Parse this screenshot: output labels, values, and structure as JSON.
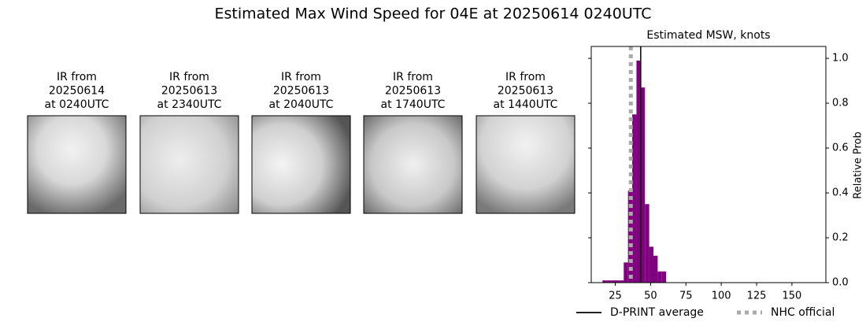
{
  "chart_data": {
    "type": "histogram",
    "title": "Estimated Max Wind Speed for 04E at 20250614 0240UTC",
    "subtitle": "Estimated MSW, knots",
    "y_label": "Relative Prob",
    "panels": [
      {
        "lines": [
          "IR from",
          "20250614",
          "at 0240UTC"
        ]
      },
      {
        "lines": [
          "IR from",
          "20250613",
          "at 2340UTC"
        ]
      },
      {
        "lines": [
          "IR from",
          "20250613",
          "at 2040UTC"
        ]
      },
      {
        "lines": [
          "IR from",
          "20250613",
          "at 1740UTC"
        ]
      },
      {
        "lines": [
          "IR from",
          "20250613",
          "at 1440UTC"
        ]
      }
    ],
    "bins": [
      16,
      19,
      22,
      25,
      28,
      31,
      34,
      37,
      40,
      43,
      46,
      49,
      52,
      55,
      58,
      61
    ],
    "values": [
      0.01,
      0.01,
      0.01,
      0.01,
      0.01,
      0.09,
      0.41,
      0.75,
      0.99,
      0.87,
      0.35,
      0.16,
      0.12,
      0.05,
      0.05
    ],
    "color": "#800080",
    "xlim": [
      8,
      174
    ],
    "ylim": [
      0,
      1.053
    ],
    "xticks": [
      25,
      50,
      75,
      100,
      125,
      150
    ],
    "yticks": [
      {
        "value": 0,
        "label": "0.0"
      },
      0.2,
      0.4,
      0.6,
      0.8,
      {
        "value": 1,
        "label": "1.0"
      }
    ],
    "vlines": [
      {
        "name": "D-PRINT average",
        "value": 43,
        "color": "#000000",
        "dash": "solid"
      },
      {
        "name": "NHC official",
        "value": 36,
        "color": "#aaaaaa",
        "dash": "dotted"
      }
    ]
  }
}
